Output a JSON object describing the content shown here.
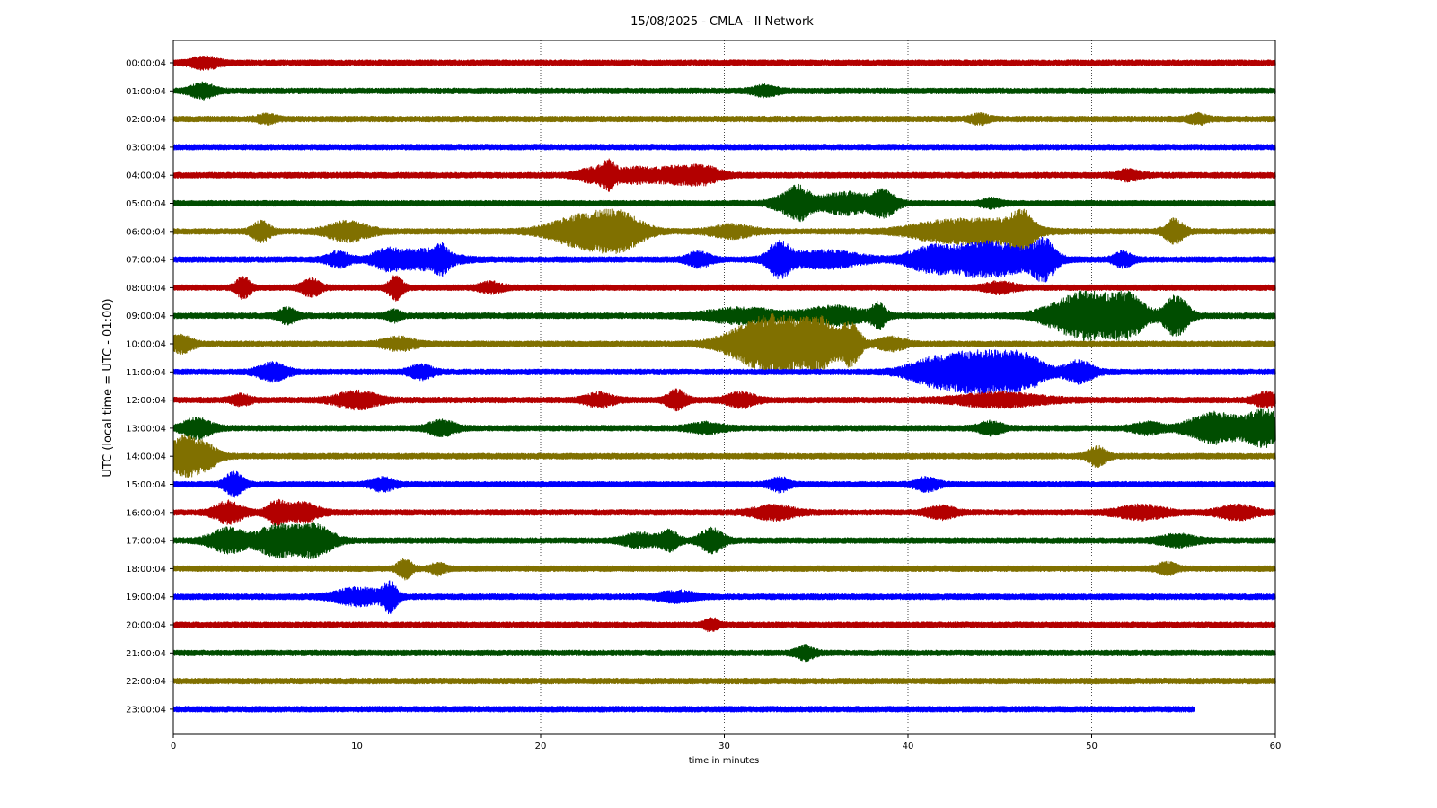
{
  "chart_data": {
    "type": "line",
    "title": "15/08/2025 - CMLA - II Network",
    "xlabel": "time in minutes",
    "ylabel": "UTC (local time = UTC - 01:00)",
    "xlim": [
      0,
      60
    ],
    "x_ticks": [
      0,
      10,
      20,
      30,
      40,
      50,
      60
    ],
    "grid": "vertical dotted lines at x ticks",
    "legend": "none",
    "colors": [
      "#b30000",
      "#004d00",
      "#807000",
      "#0000ff"
    ],
    "series": [
      {
        "label": "00:00:04",
        "end_minute": 60,
        "events": [
          [
            1.7,
            0.6,
            0.45
          ]
        ]
      },
      {
        "label": "01:00:04",
        "end_minute": 60,
        "events": [
          [
            1.6,
            0.5,
            0.6
          ],
          [
            32.2,
            0.5,
            0.4
          ]
        ]
      },
      {
        "label": "02:00:04",
        "end_minute": 60,
        "events": [
          [
            5.1,
            0.4,
            0.35
          ],
          [
            43.9,
            0.4,
            0.35
          ],
          [
            55.8,
            0.4,
            0.35
          ]
        ]
      },
      {
        "label": "03:00:04",
        "end_minute": 60,
        "events": []
      },
      {
        "label": "04:00:04",
        "end_minute": 60,
        "events": [
          [
            22.9,
            0.7,
            0.55
          ],
          [
            23.7,
            0.3,
            1.0
          ],
          [
            25.0,
            0.7,
            0.5
          ],
          [
            27.4,
            1.2,
            0.65
          ],
          [
            29.0,
            0.7,
            0.45
          ],
          [
            52.0,
            0.5,
            0.4
          ]
        ]
      },
      {
        "label": "05:00:04",
        "end_minute": 60,
        "events": [
          [
            33.3,
            0.6,
            0.55
          ],
          [
            34.1,
            0.5,
            1.2
          ],
          [
            36.6,
            1.1,
            0.9
          ],
          [
            38.7,
            0.5,
            1.0
          ],
          [
            44.5,
            0.4,
            0.35
          ]
        ]
      },
      {
        "label": "06:00:04",
        "end_minute": 60,
        "events": [
          [
            4.8,
            0.4,
            0.8
          ],
          [
            9.5,
            0.9,
            0.8
          ],
          [
            22.6,
            1.5,
            1.5
          ],
          [
            24.5,
            0.9,
            1.0
          ],
          [
            30.4,
            0.9,
            0.5
          ],
          [
            41.6,
            1.4,
            0.7
          ],
          [
            44.5,
            1.5,
            0.95
          ],
          [
            46.2,
            0.5,
            1.4
          ],
          [
            54.5,
            0.4,
            1.0
          ]
        ]
      },
      {
        "label": "07:00:04",
        "end_minute": 60,
        "events": [
          [
            9.0,
            0.5,
            0.6
          ],
          [
            11.6,
            0.6,
            0.7
          ],
          [
            13.6,
            1.2,
            0.8
          ],
          [
            14.6,
            0.3,
            0.8
          ],
          [
            28.6,
            0.5,
            0.6
          ],
          [
            33.0,
            0.5,
            1.4
          ],
          [
            35.5,
            1.5,
            0.7
          ],
          [
            41.3,
            1.0,
            1.1
          ],
          [
            43.6,
            1.0,
            0.9
          ],
          [
            45.3,
            1.3,
            1.1
          ],
          [
            47.4,
            0.5,
            1.6
          ],
          [
            51.7,
            0.4,
            0.6
          ]
        ]
      },
      {
        "label": "08:00:04",
        "end_minute": 60,
        "events": [
          [
            3.8,
            0.3,
            0.9
          ],
          [
            7.5,
            0.4,
            0.7
          ],
          [
            12.1,
            0.3,
            1.0
          ],
          [
            17.3,
            0.5,
            0.4
          ],
          [
            45.0,
            0.6,
            0.45
          ]
        ]
      },
      {
        "label": "09:00:04",
        "end_minute": 60,
        "events": [
          [
            6.2,
            0.4,
            0.6
          ],
          [
            12.0,
            0.3,
            0.45
          ],
          [
            31.0,
            1.6,
            0.6
          ],
          [
            36.0,
            1.3,
            0.75
          ],
          [
            38.4,
            0.3,
            1.0
          ],
          [
            48.6,
            1.1,
            1.1
          ],
          [
            50.0,
            0.9,
            1.5
          ],
          [
            51.9,
            0.8,
            1.9
          ],
          [
            54.6,
            0.5,
            1.8
          ]
        ]
      },
      {
        "label": "10:00:04",
        "end_minute": 60,
        "events": [
          [
            0.4,
            0.5,
            0.7
          ],
          [
            12.3,
            0.7,
            0.5
          ],
          [
            31.8,
            1.4,
            1.5
          ],
          [
            33.5,
            1.4,
            1.6
          ],
          [
            35.3,
            0.7,
            1.6
          ],
          [
            36.9,
            0.4,
            1.8
          ],
          [
            39.1,
            0.6,
            0.5
          ]
        ]
      },
      {
        "label": "11:00:04",
        "end_minute": 60,
        "events": [
          [
            5.4,
            0.6,
            0.75
          ],
          [
            13.5,
            0.5,
            0.55
          ],
          [
            41.3,
            1.1,
            1.0
          ],
          [
            43.3,
            1.1,
            1.2
          ],
          [
            45.2,
            1.2,
            1.3
          ],
          [
            46.5,
            0.8,
            0.8
          ],
          [
            49.3,
            0.6,
            0.9
          ]
        ]
      },
      {
        "label": "12:00:04",
        "end_minute": 60,
        "events": [
          [
            3.7,
            0.4,
            0.4
          ],
          [
            10.0,
            0.9,
            0.7
          ],
          [
            23.2,
            0.6,
            0.55
          ],
          [
            27.4,
            0.4,
            0.8
          ],
          [
            30.9,
            0.6,
            0.6
          ],
          [
            45.0,
            1.8,
            0.55
          ],
          [
            59.5,
            0.5,
            0.6
          ]
        ]
      },
      {
        "label": "13:00:04",
        "end_minute": 60,
        "events": [
          [
            1.3,
            0.6,
            0.85
          ],
          [
            14.6,
            0.6,
            0.6
          ],
          [
            29.0,
            0.7,
            0.4
          ],
          [
            44.5,
            0.5,
            0.5
          ],
          [
            53.0,
            0.6,
            0.45
          ],
          [
            56.7,
            1.1,
            1.3
          ],
          [
            59.4,
            0.8,
            1.5
          ]
        ]
      },
      {
        "label": "14:00:04",
        "end_minute": 60,
        "events": [
          [
            0.5,
            0.6,
            1.6
          ],
          [
            1.7,
            0.6,
            1.0
          ],
          [
            50.3,
            0.4,
            0.8
          ]
        ]
      },
      {
        "label": "15:00:04",
        "end_minute": 60,
        "events": [
          [
            3.3,
            0.4,
            1.0
          ],
          [
            11.4,
            0.5,
            0.5
          ],
          [
            33.0,
            0.4,
            0.55
          ],
          [
            41.0,
            0.5,
            0.5
          ]
        ]
      },
      {
        "label": "16:00:04",
        "end_minute": 60,
        "events": [
          [
            3.0,
            0.6,
            0.9
          ],
          [
            5.6,
            0.4,
            0.9
          ],
          [
            7.0,
            0.7,
            0.8
          ],
          [
            32.7,
            0.9,
            0.55
          ],
          [
            41.8,
            0.6,
            0.5
          ],
          [
            52.7,
            1.0,
            0.55
          ],
          [
            57.9,
            0.8,
            0.55
          ]
        ]
      },
      {
        "label": "17:00:04",
        "end_minute": 60,
        "events": [
          [
            3.0,
            0.8,
            1.0
          ],
          [
            5.6,
            0.8,
            1.3
          ],
          [
            7.6,
            0.8,
            1.4
          ],
          [
            25.4,
            0.7,
            0.55
          ],
          [
            27.0,
            0.4,
            0.8
          ],
          [
            29.3,
            0.5,
            1.0
          ],
          [
            54.7,
            0.8,
            0.45
          ]
        ]
      },
      {
        "label": "18:00:04",
        "end_minute": 60,
        "events": [
          [
            12.6,
            0.3,
            0.8
          ],
          [
            14.4,
            0.3,
            0.45
          ],
          [
            54.1,
            0.4,
            0.45
          ]
        ]
      },
      {
        "label": "19:00:04",
        "end_minute": 60,
        "events": [
          [
            10.1,
            1.0,
            0.7
          ],
          [
            11.8,
            0.3,
            1.2
          ],
          [
            27.4,
            0.8,
            0.4
          ]
        ]
      },
      {
        "label": "20:00:04",
        "end_minute": 60,
        "events": [
          [
            29.3,
            0.3,
            0.5
          ]
        ]
      },
      {
        "label": "21:00:04",
        "end_minute": 60,
        "events": [
          [
            34.4,
            0.4,
            0.55
          ]
        ]
      },
      {
        "label": "22:00:04",
        "end_minute": 60,
        "events": []
      },
      {
        "label": "23:00:04",
        "end_minute": 55.6,
        "events": []
      }
    ]
  }
}
